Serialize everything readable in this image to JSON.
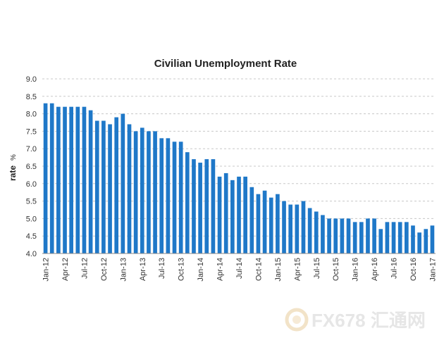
{
  "chart_data": {
    "type": "bar",
    "title": "Civilian Unemployment Rate",
    "ylabel": "rate",
    "ylabel_unit": "%",
    "xlabel": "",
    "ylim": [
      4.0,
      9.0
    ],
    "yticks": [
      "4.0",
      "4.5",
      "5.0",
      "5.5",
      "6.0",
      "6.5",
      "7.0",
      "7.5",
      "8.0",
      "8.5",
      "9.0"
    ],
    "grid": true,
    "bar_color": "#1f78c8",
    "x_tick_labels": [
      "Jan-12",
      "Apr-12",
      "Jul-12",
      "Oct-12",
      "Jan-13",
      "Apr-13",
      "Jul-13",
      "Oct-13",
      "Jan-14",
      "Apr-14",
      "Jul-14",
      "Oct-14",
      "Jan-15",
      "Apr-15",
      "Jul-15",
      "Oct-15",
      "Jan-16",
      "Apr-16",
      "Jul-16",
      "Oct-16",
      "Jan-17"
    ],
    "categories": [
      "Jan-12",
      "Feb-12",
      "Mar-12",
      "Apr-12",
      "May-12",
      "Jun-12",
      "Jul-12",
      "Aug-12",
      "Sep-12",
      "Oct-12",
      "Nov-12",
      "Dec-12",
      "Jan-13",
      "Feb-13",
      "Mar-13",
      "Apr-13",
      "May-13",
      "Jun-13",
      "Jul-13",
      "Aug-13",
      "Sep-13",
      "Oct-13",
      "Nov-13",
      "Dec-13",
      "Jan-14",
      "Feb-14",
      "Mar-14",
      "Apr-14",
      "May-14",
      "Jun-14",
      "Jul-14",
      "Aug-14",
      "Sep-14",
      "Oct-14",
      "Nov-14",
      "Dec-14",
      "Jan-15",
      "Feb-15",
      "Mar-15",
      "Apr-15",
      "May-15",
      "Jun-15",
      "Jul-15",
      "Aug-15",
      "Sep-15",
      "Oct-15",
      "Nov-15",
      "Dec-15",
      "Jan-16",
      "Feb-16",
      "Mar-16",
      "Apr-16",
      "May-16",
      "Jun-16",
      "Jul-16",
      "Aug-16",
      "Sep-16",
      "Oct-16",
      "Nov-16",
      "Dec-16",
      "Jan-17"
    ],
    "values": [
      8.3,
      8.3,
      8.2,
      8.2,
      8.2,
      8.2,
      8.2,
      8.1,
      7.8,
      7.8,
      7.7,
      7.9,
      8.0,
      7.7,
      7.5,
      7.6,
      7.5,
      7.5,
      7.3,
      7.3,
      7.2,
      7.2,
      6.9,
      6.7,
      6.6,
      6.7,
      6.7,
      6.2,
      6.3,
      6.1,
      6.2,
      6.2,
      5.9,
      5.7,
      5.8,
      5.6,
      5.7,
      5.5,
      5.4,
      5.4,
      5.5,
      5.3,
      5.2,
      5.1,
      5.0,
      5.0,
      5.0,
      5.0,
      4.9,
      4.9,
      5.0,
      5.0,
      4.7,
      4.9,
      4.9,
      4.9,
      4.9,
      4.8,
      4.6,
      4.7,
      4.8
    ]
  },
  "watermark": {
    "text": "FX678 汇通网",
    "icon": "fx678-logo-icon"
  }
}
